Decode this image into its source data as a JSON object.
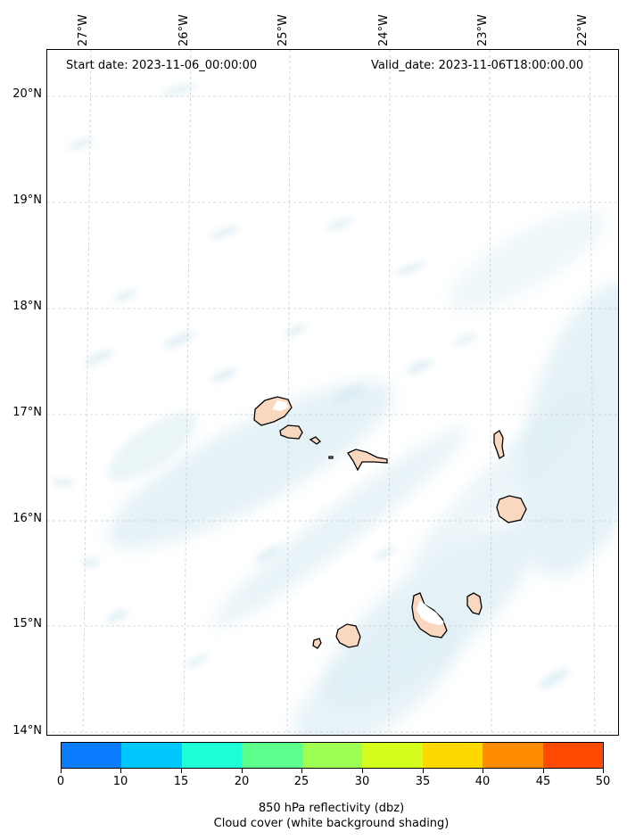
{
  "header": {
    "start_date": "Start date: 2023-11-06_00:00:00",
    "valid_date": "Valid_date: 2023-11-06T18:00:00.00"
  },
  "axes": {
    "longitude_labels": [
      "27°W",
      "26°W",
      "25°W",
      "24°W",
      "23°W",
      "22°W"
    ],
    "latitude_labels": [
      "20°N",
      "19°N",
      "18°N",
      "17°N",
      "16°N",
      "15°N",
      "14°N"
    ],
    "grid": "dashed light gray"
  },
  "colorbar": {
    "ticks": [
      "0",
      "10",
      "15",
      "20",
      "25",
      "30",
      "35",
      "40",
      "45",
      "50"
    ],
    "colors": [
      "#0a7cff",
      "#00c8ff",
      "#1effd6",
      "#5cff8c",
      "#9cff52",
      "#d4ff1e",
      "#ffd800",
      "#ff8c00",
      "#ff4b00"
    ],
    "label_line1": "850 hPa reflectivity (dbz)",
    "label_line2": "Cloud cover (white background shading)"
  },
  "map": {
    "region": "Cape Verde Islands",
    "land_color": "#f9d8bf",
    "cloud_color": "#d3e9f1"
  }
}
